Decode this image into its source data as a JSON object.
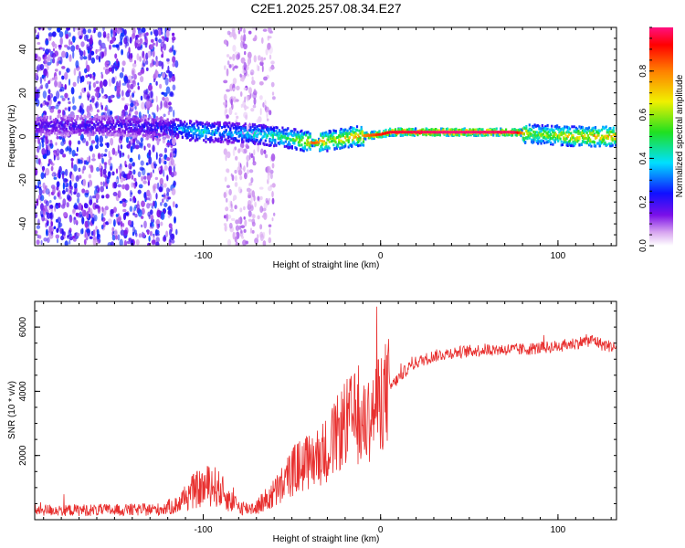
{
  "title": "C2E1.2025.257.08.34.E27",
  "colors": {
    "snr_line": "#e8302f",
    "axis": "#000000",
    "background": "#ffffff"
  },
  "chart_data": [
    {
      "type": "heatmap",
      "name": "spectrogram",
      "xlabel": "Height of straight line (km)",
      "ylabel": "Frequency (Hz)",
      "xlim": [
        -195,
        133
      ],
      "ylim": [
        -50,
        50
      ],
      "x_ticks": [
        -100,
        0,
        100
      ],
      "y_ticks": [
        -40,
        -20,
        0,
        20,
        40
      ],
      "colorbar": {
        "label": "Normalized spectral amplitude",
        "range": [
          0,
          1
        ],
        "ticks": [
          0.0,
          0.2,
          0.4,
          0.6,
          0.8
        ],
        "colormap": "rainbow"
      },
      "signal_track": [
        {
          "height_km": -195,
          "frequency_hz": 5,
          "amplitude": 0.2
        },
        {
          "height_km": -150,
          "frequency_hz": 5,
          "amplitude": 0.22
        },
        {
          "height_km": -120,
          "frequency_hz": 4,
          "amplitude": 0.25
        },
        {
          "height_km": -110,
          "frequency_hz": 3,
          "amplitude": 0.4
        },
        {
          "height_km": -100,
          "frequency_hz": 2,
          "amplitude": 0.45
        },
        {
          "height_km": -90,
          "frequency_hz": 2,
          "amplitude": 0.35
        },
        {
          "height_km": -70,
          "frequency_hz": 1,
          "amplitude": 0.45
        },
        {
          "height_km": -50,
          "frequency_hz": -1,
          "amplitude": 0.55
        },
        {
          "height_km": -38,
          "frequency_hz": -3,
          "amplitude": 0.85
        },
        {
          "height_km": -30,
          "frequency_hz": -2,
          "amplitude": 0.7
        },
        {
          "height_km": -15,
          "frequency_hz": 0,
          "amplitude": 0.75
        },
        {
          "height_km": 0,
          "frequency_hz": 1,
          "amplitude": 0.9
        },
        {
          "height_km": 5,
          "frequency_hz": 2,
          "amplitude": 0.95
        },
        {
          "height_km": 40,
          "frequency_hz": 2,
          "amplitude": 1.0
        },
        {
          "height_km": 75,
          "frequency_hz": 2,
          "amplitude": 0.98
        },
        {
          "height_km": 85,
          "frequency_hz": 1,
          "amplitude": 0.6
        },
        {
          "height_km": 110,
          "frequency_hz": 0,
          "amplitude": 0.75
        },
        {
          "height_km": 133,
          "frequency_hz": 0,
          "amplitude": 0.8
        }
      ],
      "noise_regions": [
        {
          "height_from_km": -195,
          "height_to_km": -115,
          "amplitude": 0.2
        },
        {
          "height_from_km": -88,
          "height_to_km": -60,
          "amplitude": 0.08
        }
      ]
    },
    {
      "type": "line",
      "name": "snr",
      "xlabel": "Height of straight line (km)",
      "ylabel": "SNR (10 * v/v)",
      "xlim": [
        -195,
        133
      ],
      "ylim": [
        0,
        6800
      ],
      "x_ticks": [
        -100,
        0,
        100
      ],
      "y_ticks": [
        2000,
        4000,
        6000
      ],
      "series": [
        {
          "x": [
            -195,
            -180,
            -160,
            -140,
            -125,
            -115,
            -110,
            -105,
            -100,
            -95,
            -90,
            -85,
            -80,
            -75,
            -70,
            -65,
            -60,
            -55,
            -50,
            -45,
            -40,
            -35,
            -30,
            -25,
            -20,
            -15,
            -10,
            -5,
            0,
            5,
            10,
            15,
            20,
            25,
            30,
            35,
            40,
            50,
            60,
            70,
            80,
            90,
            100,
            110,
            120,
            125,
            130,
            133
          ],
          "y": [
            300,
            300,
            300,
            300,
            320,
            450,
            700,
            900,
            1000,
            1100,
            900,
            600,
            400,
            350,
            400,
            600,
            800,
            1100,
            1500,
            1700,
            1800,
            2000,
            2200,
            2600,
            3000,
            3200,
            2900,
            3300,
            3700,
            4100,
            4400,
            4700,
            4900,
            5000,
            5100,
            5150,
            5200,
            5250,
            5300,
            5300,
            5300,
            5350,
            5400,
            5500,
            5600,
            5450,
            5400,
            5350
          ]
        }
      ]
    }
  ]
}
